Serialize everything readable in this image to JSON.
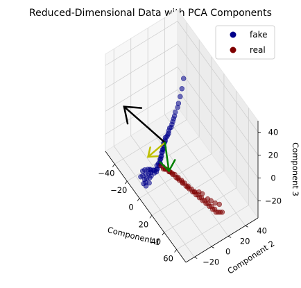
{
  "chart_data": {
    "type": "scatter",
    "projection": "3d",
    "title": "Reduced-Dimensional Data with PCA Components",
    "xlabel": "Component 1",
    "ylabel": "Component 2",
    "zlabel": "Component 3",
    "xlim": [
      -55,
      75
    ],
    "ylim": [
      -30,
      55
    ],
    "zlim": [
      -35,
      50
    ],
    "xticks": [
      -40,
      -20,
      0,
      20,
      40,
      60
    ],
    "yticks": [
      -20,
      0,
      20,
      40
    ],
    "zticks": [
      -20,
      0,
      20,
      40
    ],
    "grid": true,
    "legend_position": "top-right",
    "series": [
      {
        "name": "fake",
        "color": "#00008b",
        "points": [
          [
            0,
            22,
            46
          ],
          [
            0,
            20,
            38
          ],
          [
            0,
            18,
            32
          ],
          [
            0,
            16,
            27
          ],
          [
            0,
            15,
            24
          ],
          [
            -1,
            13,
            20
          ],
          [
            -1,
            12,
            17
          ],
          [
            -1,
            11,
            15
          ],
          [
            -1,
            10,
            13
          ],
          [
            -1,
            9,
            11
          ],
          [
            -1,
            8,
            9
          ],
          [
            -2,
            7,
            8
          ],
          [
            -2,
            6,
            6
          ],
          [
            -1,
            5,
            5
          ],
          [
            -1,
            4,
            4
          ],
          [
            -1,
            3,
            3
          ],
          [
            -2,
            2,
            2
          ],
          [
            -1,
            1,
            1
          ],
          [
            -1,
            1,
            0
          ],
          [
            -1,
            0,
            -1
          ],
          [
            -2,
            0,
            -2
          ],
          [
            -1,
            -1,
            -3
          ],
          [
            0,
            -1,
            -4
          ],
          [
            0,
            -2,
            -5
          ],
          [
            -1,
            -2,
            -6
          ],
          [
            0,
            -3,
            -7
          ],
          [
            -1,
            -3,
            -8
          ],
          [
            0,
            -4,
            -10
          ],
          [
            -1,
            -4,
            -11
          ],
          [
            0,
            -5,
            -12
          ],
          [
            -1,
            -5,
            -13
          ],
          [
            0,
            -6,
            -14
          ],
          [
            1,
            -6,
            -15
          ],
          [
            -1,
            -7,
            -16
          ],
          [
            0,
            -7,
            -17
          ],
          [
            -2,
            -8,
            -18
          ],
          [
            0,
            -9,
            -19
          ],
          [
            -1,
            -9,
            -20
          ],
          [
            0,
            -10,
            -21
          ],
          [
            -3,
            -10,
            -22
          ],
          [
            -4,
            -11,
            -22
          ],
          [
            -2,
            -11,
            -23
          ],
          [
            -6,
            -12,
            -23
          ],
          [
            -8,
            -12,
            -24
          ],
          [
            -5,
            -13,
            -24
          ],
          [
            -10,
            -13,
            -25
          ],
          [
            -3,
            -14,
            -25
          ],
          [
            -7,
            -14,
            -26
          ],
          [
            -12,
            -15,
            -26
          ],
          [
            -4,
            -15,
            -27
          ],
          [
            -9,
            -16,
            -27
          ],
          [
            -14,
            -16,
            -28
          ],
          [
            -6,
            -17,
            -28
          ],
          [
            -2,
            -17,
            -29
          ],
          [
            -11,
            -18,
            -29
          ],
          [
            -8,
            -18,
            -30
          ],
          [
            -5,
            -19,
            -30
          ],
          [
            -13,
            -19,
            -31
          ],
          [
            -3,
            -20,
            -31
          ],
          [
            -7,
            -20,
            -32
          ]
        ]
      },
      {
        "name": "real",
        "color": "#800000",
        "points": [
          [
            2,
            -6,
            -16
          ],
          [
            4,
            -5,
            -16
          ],
          [
            6,
            -4,
            -17
          ],
          [
            8,
            -3,
            -16
          ],
          [
            10,
            -2,
            -17
          ],
          [
            12,
            -2,
            -16
          ],
          [
            14,
            -1,
            -17
          ],
          [
            16,
            0,
            -16
          ],
          [
            18,
            0,
            -17
          ],
          [
            20,
            1,
            -16
          ],
          [
            22,
            1,
            -17
          ],
          [
            24,
            2,
            -16
          ],
          [
            26,
            2,
            -17
          ],
          [
            28,
            3,
            -16
          ],
          [
            30,
            3,
            -17
          ],
          [
            32,
            4,
            -16
          ],
          [
            34,
            4,
            -17
          ],
          [
            36,
            5,
            -16
          ],
          [
            38,
            5,
            -17
          ],
          [
            40,
            6,
            -16
          ],
          [
            42,
            6,
            -17
          ],
          [
            44,
            7,
            -16
          ],
          [
            46,
            7,
            -17
          ],
          [
            48,
            8,
            -16
          ],
          [
            50,
            8,
            -17
          ],
          [
            52,
            9,
            -16
          ],
          [
            54,
            9,
            -17
          ],
          [
            56,
            10,
            -16
          ],
          [
            58,
            10,
            -17
          ],
          [
            60,
            11,
            -16
          ],
          [
            62,
            11,
            -17
          ],
          [
            64,
            12,
            -16
          ],
          [
            66,
            12,
            -17
          ],
          [
            68,
            13,
            -16
          ],
          [
            70,
            14,
            -15
          ],
          [
            72,
            15,
            -14
          ],
          [
            62,
            14,
            -13
          ],
          [
            66,
            16,
            -12
          ],
          [
            58,
            12,
            -13
          ],
          [
            54,
            11,
            -14
          ],
          [
            48,
            9,
            -13
          ],
          [
            44,
            8,
            -14
          ],
          [
            38,
            7,
            -18
          ],
          [
            30,
            5,
            -19
          ],
          [
            24,
            3,
            -18
          ],
          [
            18,
            2,
            -19
          ],
          [
            12,
            0,
            -18
          ],
          [
            8,
            -1,
            -19
          ],
          [
            5,
            -3,
            -18
          ],
          [
            3,
            -4,
            -19
          ]
        ]
      }
    ],
    "pca_components": [
      {
        "color": "#000000",
        "direction": [
          -55,
          -8,
          -6
        ]
      },
      {
        "color": "#bfbf00",
        "direction": [
          -8,
          -14,
          -12
        ]
      },
      {
        "color": "#008000",
        "direction": [
          12,
          -4,
          -14
        ]
      }
    ],
    "legend": [
      {
        "label": "fake",
        "color": "#00008b"
      },
      {
        "label": "real",
        "color": "#800000"
      }
    ]
  }
}
